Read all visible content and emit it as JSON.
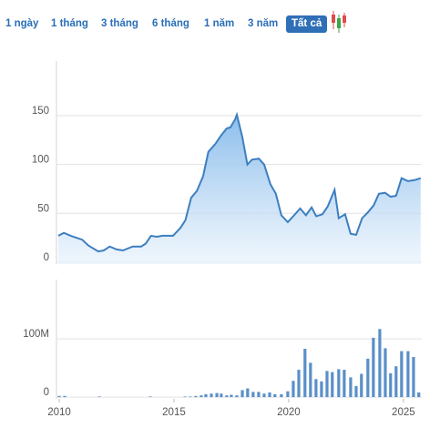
{
  "controls": {
    "ranges": [
      "1 ngày",
      "1 tháng",
      "3 tháng",
      "6 tháng",
      "1 năm",
      "3 năm",
      "Tất cả"
    ],
    "selected_index": 6
  },
  "chart_data": [
    {
      "type": "area",
      "color": "#3d7fc0",
      "grid": true,
      "x": [
        2009.96,
        2010.2,
        2010.5,
        2011.0,
        2011.27,
        2011.7,
        2011.94,
        2012.2,
        2012.5,
        2012.78,
        2013.2,
        2013.57,
        2013.77,
        2014.0,
        2014.25,
        2014.5,
        2014.76,
        2014.96,
        2015.28,
        2015.5,
        2015.75,
        2016.0,
        2016.27,
        2016.5,
        2016.8,
        2017.06,
        2017.3,
        2017.46,
        2017.66,
        2017.74,
        2017.98,
        2018.2,
        2018.4,
        2018.7,
        2018.93,
        2019.2,
        2019.44,
        2019.68,
        2019.96,
        2020.2,
        2020.5,
        2020.75,
        2021.0,
        2021.2,
        2021.47,
        2021.7,
        2022.0,
        2022.18,
        2022.46,
        2022.7,
        2022.94,
        2023.2,
        2023.45,
        2023.7,
        2023.93,
        2024.2,
        2024.44,
        2024.68,
        2024.92,
        2025.2,
        2025.48,
        2025.75
      ],
      "values": [
        27,
        30,
        27,
        23,
        17,
        11,
        12,
        16,
        13,
        12,
        16,
        16,
        19,
        27,
        26,
        27,
        27,
        27,
        35,
        43,
        66,
        73,
        88,
        113,
        121,
        130,
        137,
        138,
        146,
        151,
        128,
        100,
        105,
        106,
        100,
        80,
        70,
        48,
        41,
        47,
        55,
        48,
        56,
        47,
        49,
        57,
        74,
        45,
        49,
        29,
        28,
        45,
        51,
        58,
        70,
        71,
        67,
        68,
        86,
        83,
        84,
        86
      ],
      "xlim": [
        2009.88,
        2025.8
      ],
      "ylim": [
        -2,
        206
      ],
      "yticks": [
        0,
        50,
        100,
        150
      ]
    },
    {
      "type": "bar",
      "color": "#5a8fc8",
      "grid": true,
      "x": [
        2010.0,
        2010.24,
        2011.75,
        2013.97,
        2015.48,
        2015.71,
        2015.95,
        2016.19,
        2016.39,
        2016.63,
        2016.87,
        2017.06,
        2017.3,
        2017.5,
        2017.74,
        2017.98,
        2018.21,
        2018.45,
        2018.69,
        2018.93,
        2019.17,
        2019.4,
        2019.68,
        2019.96,
        2020.2,
        2020.44,
        2020.71,
        2020.95,
        2021.19,
        2021.43,
        2021.67,
        2021.9,
        2022.18,
        2022.42,
        2022.7,
        2022.94,
        2023.17,
        2023.45,
        2023.69,
        2023.97,
        2024.21,
        2024.44,
        2024.68,
        2024.92,
        2025.2,
        2025.44,
        2025.67
      ],
      "values": [
        2000000,
        2000000,
        1000000,
        1000000,
        1000000,
        1000000,
        2000000,
        3000000,
        5000000,
        6000000,
        7000000,
        6000000,
        3000000,
        4000000,
        3000000,
        12000000,
        15000000,
        9000000,
        9000000,
        6000000,
        8000000,
        5000000,
        5000000,
        10000000,
        28000000,
        47000000,
        83000000,
        59000000,
        31000000,
        27000000,
        45000000,
        43000000,
        48000000,
        47000000,
        34000000,
        19000000,
        40000000,
        66000000,
        102000000,
        117000000,
        84000000,
        41000000,
        53000000,
        79000000,
        79000000,
        69000000,
        8000000
      ],
      "xlim": [
        2009.88,
        2025.8
      ],
      "xticks": [
        2010,
        2015,
        2020,
        2025
      ],
      "ylim": [
        -3000000,
        202000000
      ],
      "yticks": [
        0,
        {
          "value": 100000000,
          "label": "100M"
        }
      ]
    }
  ]
}
